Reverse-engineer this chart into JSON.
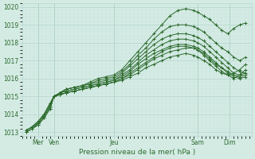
{
  "title": "",
  "xlabel": "Pression niveau de la mer( hPa )",
  "ylabel": "",
  "xlim": [
    0,
    115
  ],
  "ylim_min": 1012.8,
  "ylim_max": 1020.2,
  "yticks": [
    1013,
    1014,
    1015,
    1016,
    1017,
    1018,
    1019,
    1020
  ],
  "xtick_positions": [
    8,
    16,
    46,
    88,
    104
  ],
  "xtick_labels": [
    "Mer",
    "Ven",
    "Jeu",
    "Sam",
    "Dim"
  ],
  "vlines": [
    8,
    16,
    46,
    88,
    104
  ],
  "bg_color": "#d4ebe4",
  "grid_major_color": "#b8d8d0",
  "grid_minor_color": "#c8e4de",
  "line_color": "#2d6b2d",
  "lines": [
    {
      "x": [
        2,
        5,
        8,
        11,
        14,
        16,
        19,
        22,
        26,
        30,
        34,
        38,
        42,
        46,
        50,
        54,
        58,
        62,
        66,
        70,
        74,
        78,
        82,
        86,
        88,
        91,
        94,
        97,
        100,
        103,
        106,
        109,
        112
      ],
      "y": [
        1013.1,
        1013.3,
        1013.6,
        1014.0,
        1014.6,
        1015.0,
        1015.2,
        1015.4,
        1015.5,
        1015.6,
        1015.8,
        1016.0,
        1016.1,
        1016.2,
        1016.5,
        1017.0,
        1017.5,
        1018.0,
        1018.5,
        1019.0,
        1019.5,
        1019.8,
        1019.9,
        1019.8,
        1019.7,
        1019.5,
        1019.3,
        1019.0,
        1018.7,
        1018.5,
        1018.8,
        1019.0,
        1019.1
      ]
    },
    {
      "x": [
        2,
        5,
        8,
        11,
        14,
        16,
        19,
        22,
        26,
        30,
        34,
        38,
        42,
        46,
        50,
        54,
        58,
        62,
        66,
        70,
        74,
        78,
        82,
        86,
        88,
        91,
        94,
        97,
        100,
        103,
        106,
        109,
        112
      ],
      "y": [
        1013.1,
        1013.3,
        1013.6,
        1014.0,
        1014.6,
        1015.0,
        1015.2,
        1015.4,
        1015.5,
        1015.6,
        1015.7,
        1015.9,
        1016.0,
        1016.1,
        1016.4,
        1016.8,
        1017.3,
        1017.7,
        1018.2,
        1018.6,
        1018.9,
        1019.0,
        1019.0,
        1018.9,
        1018.8,
        1018.6,
        1018.3,
        1018.0,
        1017.7,
        1017.5,
        1017.2,
        1017.0,
        1017.2
      ]
    },
    {
      "x": [
        2,
        5,
        8,
        11,
        14,
        16,
        19,
        22,
        26,
        30,
        34,
        38,
        42,
        46,
        50,
        54,
        58,
        62,
        66,
        70,
        74,
        78,
        82,
        86,
        88,
        91,
        94,
        97,
        100,
        103,
        106,
        109,
        112
      ],
      "y": [
        1013.1,
        1013.3,
        1013.5,
        1013.9,
        1014.5,
        1015.0,
        1015.2,
        1015.4,
        1015.5,
        1015.6,
        1015.7,
        1015.8,
        1015.9,
        1016.0,
        1016.3,
        1016.7,
        1017.1,
        1017.5,
        1017.9,
        1018.2,
        1018.4,
        1018.5,
        1018.5,
        1018.4,
        1018.3,
        1018.1,
        1017.8,
        1017.5,
        1017.2,
        1016.9,
        1016.6,
        1016.4,
        1016.3
      ]
    },
    {
      "x": [
        2,
        5,
        8,
        11,
        14,
        16,
        19,
        22,
        26,
        30,
        34,
        38,
        42,
        46,
        50,
        54,
        58,
        62,
        66,
        70,
        74,
        78,
        82,
        86,
        88,
        91,
        94,
        97,
        100,
        103,
        106,
        109,
        112
      ],
      "y": [
        1013.0,
        1013.2,
        1013.5,
        1013.9,
        1014.4,
        1015.0,
        1015.2,
        1015.3,
        1015.4,
        1015.5,
        1015.6,
        1015.7,
        1015.8,
        1015.9,
        1016.2,
        1016.5,
        1016.9,
        1017.3,
        1017.6,
        1017.9,
        1018.1,
        1018.2,
        1018.2,
        1018.1,
        1018.0,
        1017.8,
        1017.5,
        1017.2,
        1016.9,
        1016.6,
        1016.3,
        1016.2,
        1016.3
      ]
    },
    {
      "x": [
        2,
        5,
        8,
        11,
        14,
        16,
        19,
        22,
        26,
        30,
        34,
        38,
        42,
        46,
        50,
        54,
        58,
        62,
        66,
        70,
        74,
        78,
        82,
        86,
        88,
        91,
        94,
        97,
        100,
        103,
        106,
        109,
        112
      ],
      "y": [
        1013.0,
        1013.2,
        1013.4,
        1013.8,
        1014.3,
        1015.0,
        1015.2,
        1015.3,
        1015.4,
        1015.5,
        1015.6,
        1015.7,
        1015.8,
        1015.9,
        1016.1,
        1016.4,
        1016.8,
        1017.1,
        1017.4,
        1017.6,
        1017.8,
        1017.9,
        1017.9,
        1017.8,
        1017.7,
        1017.5,
        1017.2,
        1016.9,
        1016.6,
        1016.3,
        1016.1,
        1016.0,
        1016.1
      ]
    },
    {
      "x": [
        2,
        5,
        8,
        11,
        14,
        16,
        19,
        22,
        26,
        30,
        34,
        38,
        42,
        46,
        50,
        54,
        58,
        62,
        66,
        70,
        74,
        78,
        82,
        86,
        88,
        91,
        94,
        97,
        100,
        103,
        106,
        109,
        112
      ],
      "y": [
        1013.0,
        1013.2,
        1013.4,
        1013.8,
        1014.3,
        1015.0,
        1015.1,
        1015.2,
        1015.3,
        1015.4,
        1015.5,
        1015.6,
        1015.7,
        1015.8,
        1016.0,
        1016.3,
        1016.6,
        1016.9,
        1017.2,
        1017.5,
        1017.7,
        1017.8,
        1017.8,
        1017.7,
        1017.6,
        1017.3,
        1017.0,
        1016.7,
        1016.4,
        1016.2,
        1016.0,
        1016.2,
        1016.5
      ]
    },
    {
      "x": [
        16,
        19,
        22,
        26,
        30,
        34,
        38,
        42,
        46,
        50,
        54,
        58,
        62,
        66,
        70,
        74,
        78,
        82,
        86,
        88,
        91,
        94,
        97,
        100,
        103,
        106,
        109,
        112
      ],
      "y": [
        1015.0,
        1015.1,
        1015.2,
        1015.3,
        1015.4,
        1015.5,
        1015.6,
        1015.7,
        1015.8,
        1016.0,
        1016.2,
        1016.5,
        1016.8,
        1017.1,
        1017.3,
        1017.5,
        1017.6,
        1017.7,
        1017.7,
        1017.6,
        1017.4,
        1017.1,
        1016.8,
        1016.6,
        1016.4,
        1016.2,
        1016.1,
        1016.2
      ]
    },
    {
      "x": [
        16,
        19,
        22,
        26,
        30,
        34,
        38,
        42,
        46,
        50,
        54,
        58,
        62,
        66,
        70,
        74,
        78,
        82,
        86,
        88,
        91,
        94,
        97,
        100,
        103,
        106,
        109,
        112
      ],
      "y": [
        1015.0,
        1015.1,
        1015.2,
        1015.3,
        1015.4,
        1015.5,
        1015.6,
        1015.7,
        1015.8,
        1015.9,
        1016.1,
        1016.3,
        1016.6,
        1016.8,
        1017.0,
        1017.2,
        1017.3,
        1017.4,
        1017.3,
        1017.2,
        1017.0,
        1016.8,
        1016.5,
        1016.3,
        1016.2,
        1016.3,
        1016.5,
        1016.8
      ]
    }
  ]
}
